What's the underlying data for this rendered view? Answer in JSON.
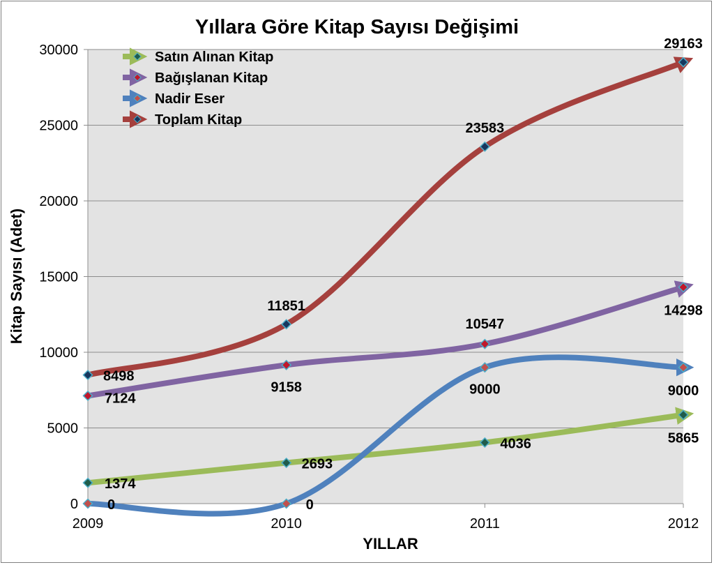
{
  "chart_data": {
    "type": "line",
    "title": "Yıllara Göre Kitap Sayısı Değişimi",
    "xlabel": "YILLAR",
    "ylabel": "Kitap Sayısı (Adet)",
    "categories": [
      "2009",
      "2010",
      "2011",
      "2012"
    ],
    "ylim": [
      0,
      30000
    ],
    "yticks": [
      "0",
      "5000",
      "10000",
      "15000",
      "20000",
      "25000",
      "30000"
    ],
    "grid": true,
    "legend_position": "top-left",
    "background_color": "#e3e3e3",
    "series": [
      {
        "name": "Satın Alınan Kitap",
        "values": [
          1374,
          2693,
          4036,
          5865
        ],
        "labels": [
          "1374",
          "2693",
          "4036",
          "5865"
        ],
        "color": "#9bbb59",
        "marker_color": "#1f5c4a"
      },
      {
        "name": "Bağışlanan Kitap",
        "values": [
          7124,
          9158,
          10547,
          14298
        ],
        "labels": [
          "7124",
          "9158",
          "10547",
          "14298"
        ],
        "color": "#8064a2",
        "marker_color": "#c0182c"
      },
      {
        "name": "Nadir Eser",
        "values": [
          0,
          0,
          9000,
          9000
        ],
        "labels": [
          "0",
          "0",
          "9000",
          "9000"
        ],
        "color": "#4f81bd",
        "marker_color": "#c0504d"
      },
      {
        "name": "Toplam Kitap",
        "values": [
          8498,
          11851,
          23583,
          29163
        ],
        "labels": [
          "8498",
          "11851",
          "23583",
          "29163"
        ],
        "color": "#a5403d",
        "marker_color": "#17375e"
      }
    ]
  }
}
